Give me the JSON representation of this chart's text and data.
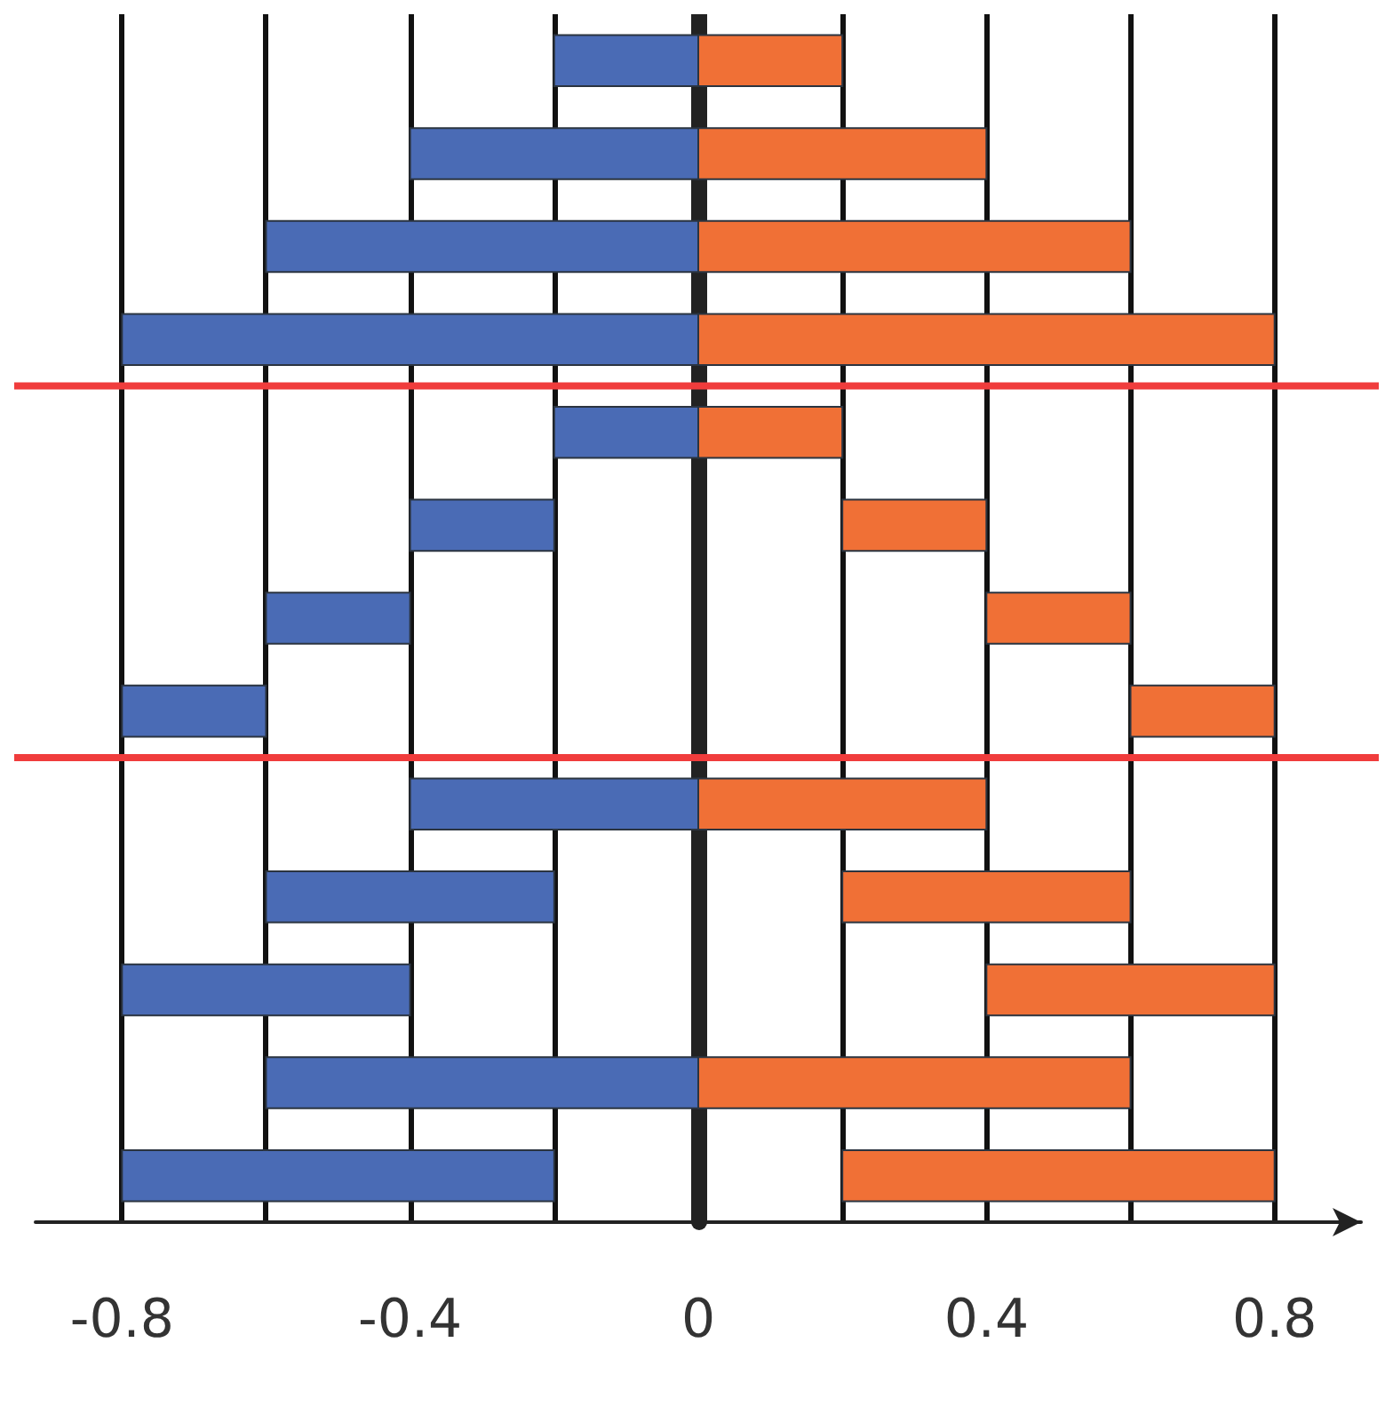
{
  "chart_data": {
    "type": "bar",
    "orientation": "horizontal",
    "categories": [
      null,
      null,
      null,
      null,
      null,
      null,
      null,
      null,
      null,
      null,
      null,
      null,
      null
    ],
    "series": [
      {
        "color": "#4a6bb5",
        "base": [
          -0.2,
          -0.4,
          -0.6,
          -0.8,
          -0.2,
          -0.4,
          -0.6,
          -0.8,
          -0.4,
          -0.6,
          -0.8,
          -0.6,
          -0.8
        ],
        "values": [
          0.2,
          0.4,
          0.6,
          0.8,
          0.2,
          0.2,
          0.2,
          0.2,
          0.4,
          0.4,
          0.4,
          0.6,
          0.6
        ]
      },
      {
        "color": "#f07036",
        "base": [
          0,
          0,
          0,
          0,
          0,
          0.2,
          0.4,
          0.6,
          0,
          0.2,
          0.4,
          0,
          0.2
        ],
        "values": [
          0.2,
          0.4,
          0.6,
          0.8,
          0.2,
          0.2,
          0.2,
          0.2,
          0.4,
          0.4,
          0.4,
          0.6,
          0.6
        ]
      }
    ],
    "xlim": [
      -0.92,
      0.92
    ],
    "xticks": [
      -0.8,
      {
        "value": -0.6,
        "label": null
      },
      -0.4,
      {
        "value": -0.2,
        "label": null
      },
      0,
      {
        "value": 0.2,
        "label": null
      },
      0.4,
      {
        "value": 0.6,
        "label": null
      },
      0.8
    ],
    "grid": "x",
    "tick_labels": "x"
  }
}
